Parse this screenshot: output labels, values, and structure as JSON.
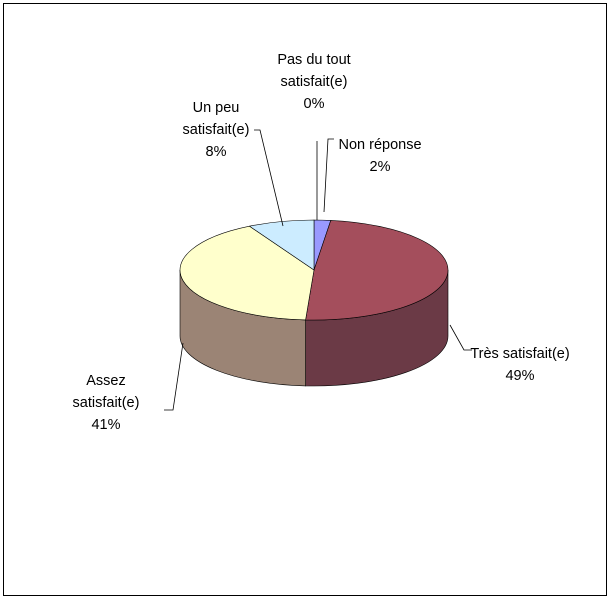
{
  "chart_data": {
    "type": "pie",
    "title": "",
    "legend": "none",
    "three_d": true,
    "slices": [
      {
        "name": "Non réponse",
        "label_lines": [
          "Non réponse"
        ],
        "value": 2,
        "label": "2%",
        "color": "#9999ff",
        "side_color": "#6666b3"
      },
      {
        "name": "Très satisfait(e)",
        "label_lines": [
          "Très satisfait(e)"
        ],
        "value": 49,
        "label": "49%",
        "color": "#a44e5c",
        "side_color": "#6b3a46"
      },
      {
        "name": "Assez satisfait(e)",
        "label_lines": [
          "Assez",
          "satisfait(e)"
        ],
        "value": 41,
        "label": "41%",
        "color": "#ffffcc",
        "side_color": "#9b8475"
      },
      {
        "name": "Un peu satisfait(e)",
        "label_lines": [
          "Un peu",
          "satisfait(e)"
        ],
        "value": 8,
        "label": "8%",
        "color": "#ccecff",
        "side_color": "#7f9aa8"
      },
      {
        "name": "Pas du tout satisfait(e)",
        "label_lines": [
          "Pas du tout",
          "satisfait(e)"
        ],
        "value": 0,
        "label": "0%",
        "color": "#e0e0e0",
        "side_color": "#999999"
      }
    ]
  }
}
